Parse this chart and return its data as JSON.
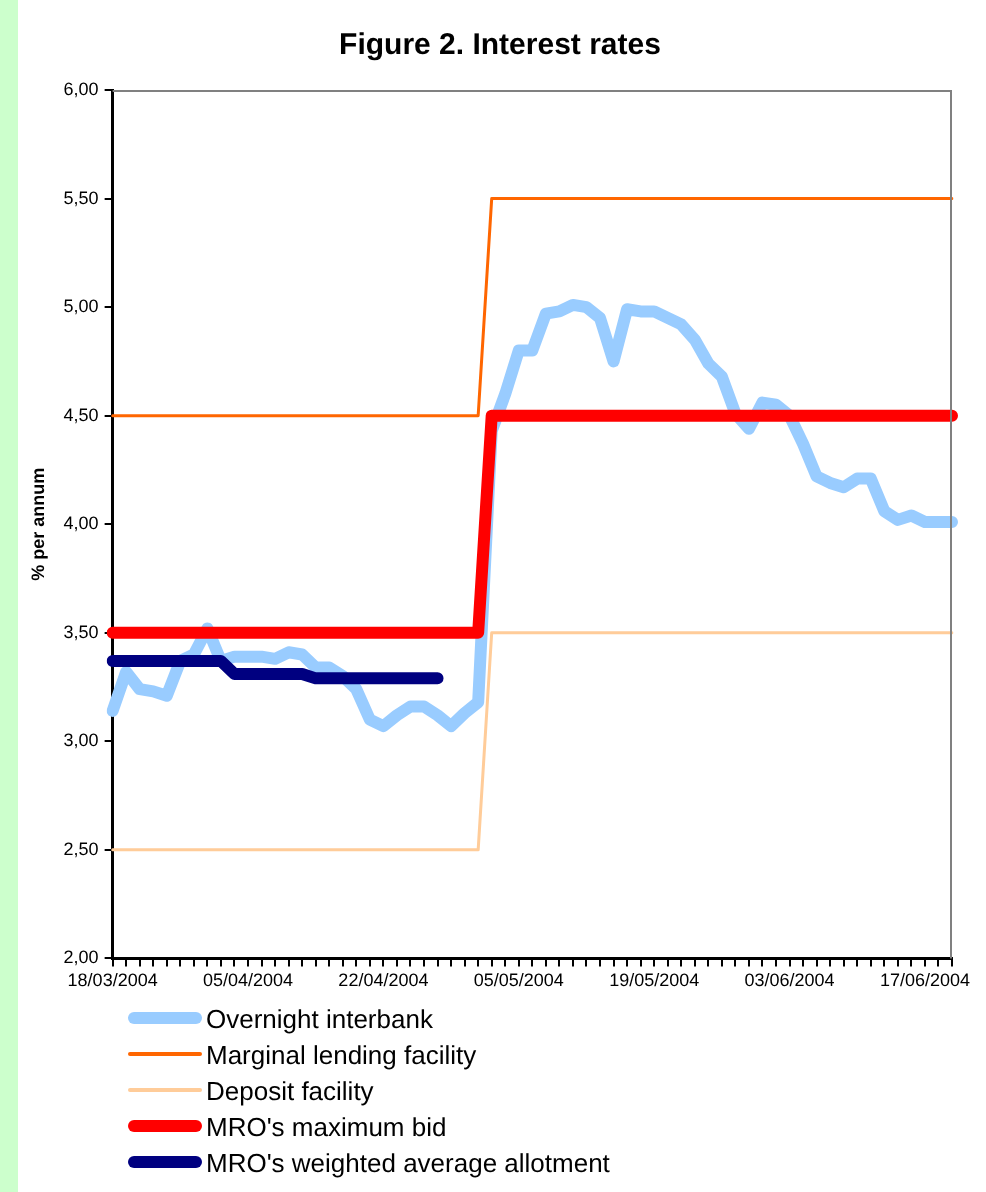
{
  "chart_data": {
    "type": "line",
    "title": "Figure 2. Interest rates",
    "ylabel": "% per annum",
    "categories": [
      "18/03/2004",
      null,
      null,
      null,
      null,
      null,
      null,
      null,
      null,
      null,
      "05/04/2004",
      null,
      null,
      null,
      null,
      null,
      null,
      null,
      null,
      null,
      "22/04/2004",
      null,
      null,
      null,
      null,
      null,
      null,
      null,
      null,
      null,
      "05/05/2004",
      null,
      null,
      null,
      null,
      null,
      null,
      null,
      null,
      null,
      "19/05/2004",
      null,
      null,
      null,
      null,
      null,
      null,
      null,
      null,
      null,
      "03/06/2004",
      null,
      null,
      null,
      null,
      null,
      null,
      null,
      null,
      null,
      "17/06/2004",
      null,
      null
    ],
    "ylim": [
      2,
      6
    ],
    "yticks": [
      {
        "value": 2,
        "label": "2,00"
      },
      {
        "value": 2.5,
        "label": "2,50"
      },
      {
        "value": 3,
        "label": "3,00"
      },
      {
        "value": 3.5,
        "label": "3,50"
      },
      {
        "value": 4,
        "label": "4,00"
      },
      {
        "value": 4.5,
        "label": "4,50"
      },
      {
        "value": 5,
        "label": "5,00"
      },
      {
        "value": 5.5,
        "label": "5,50"
      },
      {
        "value": 6,
        "label": "6,00"
      }
    ],
    "grid": false,
    "legend": "bottom",
    "marker": "none",
    "series": [
      {
        "name": "Overnight interbank",
        "color": "#99ccff",
        "values": [
          3.14,
          3.32,
          3.24,
          3.23,
          3.21,
          3.37,
          3.4,
          3.52,
          3.37,
          3.39,
          3.39,
          3.39,
          3.38,
          3.41,
          3.4,
          3.34,
          3.34,
          3.3,
          3.24,
          3.1,
          3.07,
          3.12,
          3.16,
          3.16,
          3.12,
          3.07,
          3.13,
          3.18,
          4.43,
          4.6,
          4.8,
          4.8,
          4.97,
          4.98,
          5.01,
          5.0,
          4.95,
          4.75,
          4.99,
          4.98,
          4.98,
          4.95,
          4.92,
          4.85,
          4.74,
          4.68,
          4.51,
          4.44,
          4.56,
          4.55,
          4.5,
          4.37,
          4.22,
          4.19,
          4.17,
          4.21,
          4.21,
          4.06,
          4.02,
          4.04,
          4.01,
          4.01,
          4.01
        ]
      },
      {
        "name": "Marginal lending facility",
        "color": "#ff6600",
        "values": [
          4.5,
          4.5,
          4.5,
          4.5,
          4.5,
          4.5,
          4.5,
          4.5,
          4.5,
          4.5,
          4.5,
          4.5,
          4.5,
          4.5,
          4.5,
          4.5,
          4.5,
          4.5,
          4.5,
          4.5,
          4.5,
          4.5,
          4.5,
          4.5,
          4.5,
          4.5,
          4.5,
          4.5,
          5.5,
          5.5,
          5.5,
          5.5,
          5.5,
          5.5,
          5.5,
          5.5,
          5.5,
          5.5,
          5.5,
          5.5,
          5.5,
          5.5,
          5.5,
          5.5,
          5.5,
          5.5,
          5.5,
          5.5,
          5.5,
          5.5,
          5.5,
          5.5,
          5.5,
          5.5,
          5.5,
          5.5,
          5.5,
          5.5,
          5.5,
          5.5,
          5.5,
          5.5,
          5.5
        ]
      },
      {
        "name": "Deposit facility",
        "color": "#ffcc99",
        "values": [
          2.5,
          2.5,
          2.5,
          2.5,
          2.5,
          2.5,
          2.5,
          2.5,
          2.5,
          2.5,
          2.5,
          2.5,
          2.5,
          2.5,
          2.5,
          2.5,
          2.5,
          2.5,
          2.5,
          2.5,
          2.5,
          2.5,
          2.5,
          2.5,
          2.5,
          2.5,
          2.5,
          2.5,
          3.5,
          3.5,
          3.5,
          3.5,
          3.5,
          3.5,
          3.5,
          3.5,
          3.5,
          3.5,
          3.5,
          3.5,
          3.5,
          3.5,
          3.5,
          3.5,
          3.5,
          3.5,
          3.5,
          3.5,
          3.5,
          3.5,
          3.5,
          3.5,
          3.5,
          3.5,
          3.5,
          3.5,
          3.5,
          3.5,
          3.5,
          3.5,
          3.5,
          3.5,
          3.5
        ]
      },
      {
        "name": "MRO's maximum bid",
        "color": "#ff0000",
        "values": [
          3.5,
          3.5,
          3.5,
          3.5,
          3.5,
          3.5,
          3.5,
          3.5,
          3.5,
          3.5,
          3.5,
          3.5,
          3.5,
          3.5,
          3.5,
          3.5,
          3.5,
          3.5,
          3.5,
          3.5,
          3.5,
          3.5,
          3.5,
          3.5,
          3.5,
          3.5,
          3.5,
          3.5,
          4.5,
          4.5,
          4.5,
          4.5,
          4.5,
          4.5,
          4.5,
          4.5,
          4.5,
          4.5,
          4.5,
          4.5,
          4.5,
          4.5,
          4.5,
          4.5,
          4.5,
          4.5,
          4.5,
          4.5,
          4.5,
          4.5,
          4.5,
          4.5,
          4.5,
          4.5,
          4.5,
          4.5,
          4.5,
          4.5,
          4.5,
          4.5,
          4.5,
          4.5,
          4.5
        ]
      },
      {
        "name": "MRO's weighted average allotment",
        "color": "#000080",
        "values": [
          3.37,
          3.37,
          3.37,
          3.37,
          3.37,
          3.37,
          3.37,
          3.37,
          3.37,
          3.31,
          3.31,
          3.31,
          3.31,
          3.31,
          3.31,
          3.29,
          3.29,
          3.29,
          3.29,
          3.29,
          3.29,
          3.29,
          3.29,
          3.29,
          3.29,
          null,
          null,
          null,
          null,
          null,
          null,
          null,
          null,
          null,
          null,
          null,
          null,
          null,
          null,
          null,
          null,
          null,
          null,
          null,
          null,
          null,
          null,
          null,
          null,
          null,
          null,
          null,
          null,
          null,
          null,
          null,
          null,
          null,
          null,
          null,
          null,
          null,
          null
        ]
      }
    ]
  }
}
